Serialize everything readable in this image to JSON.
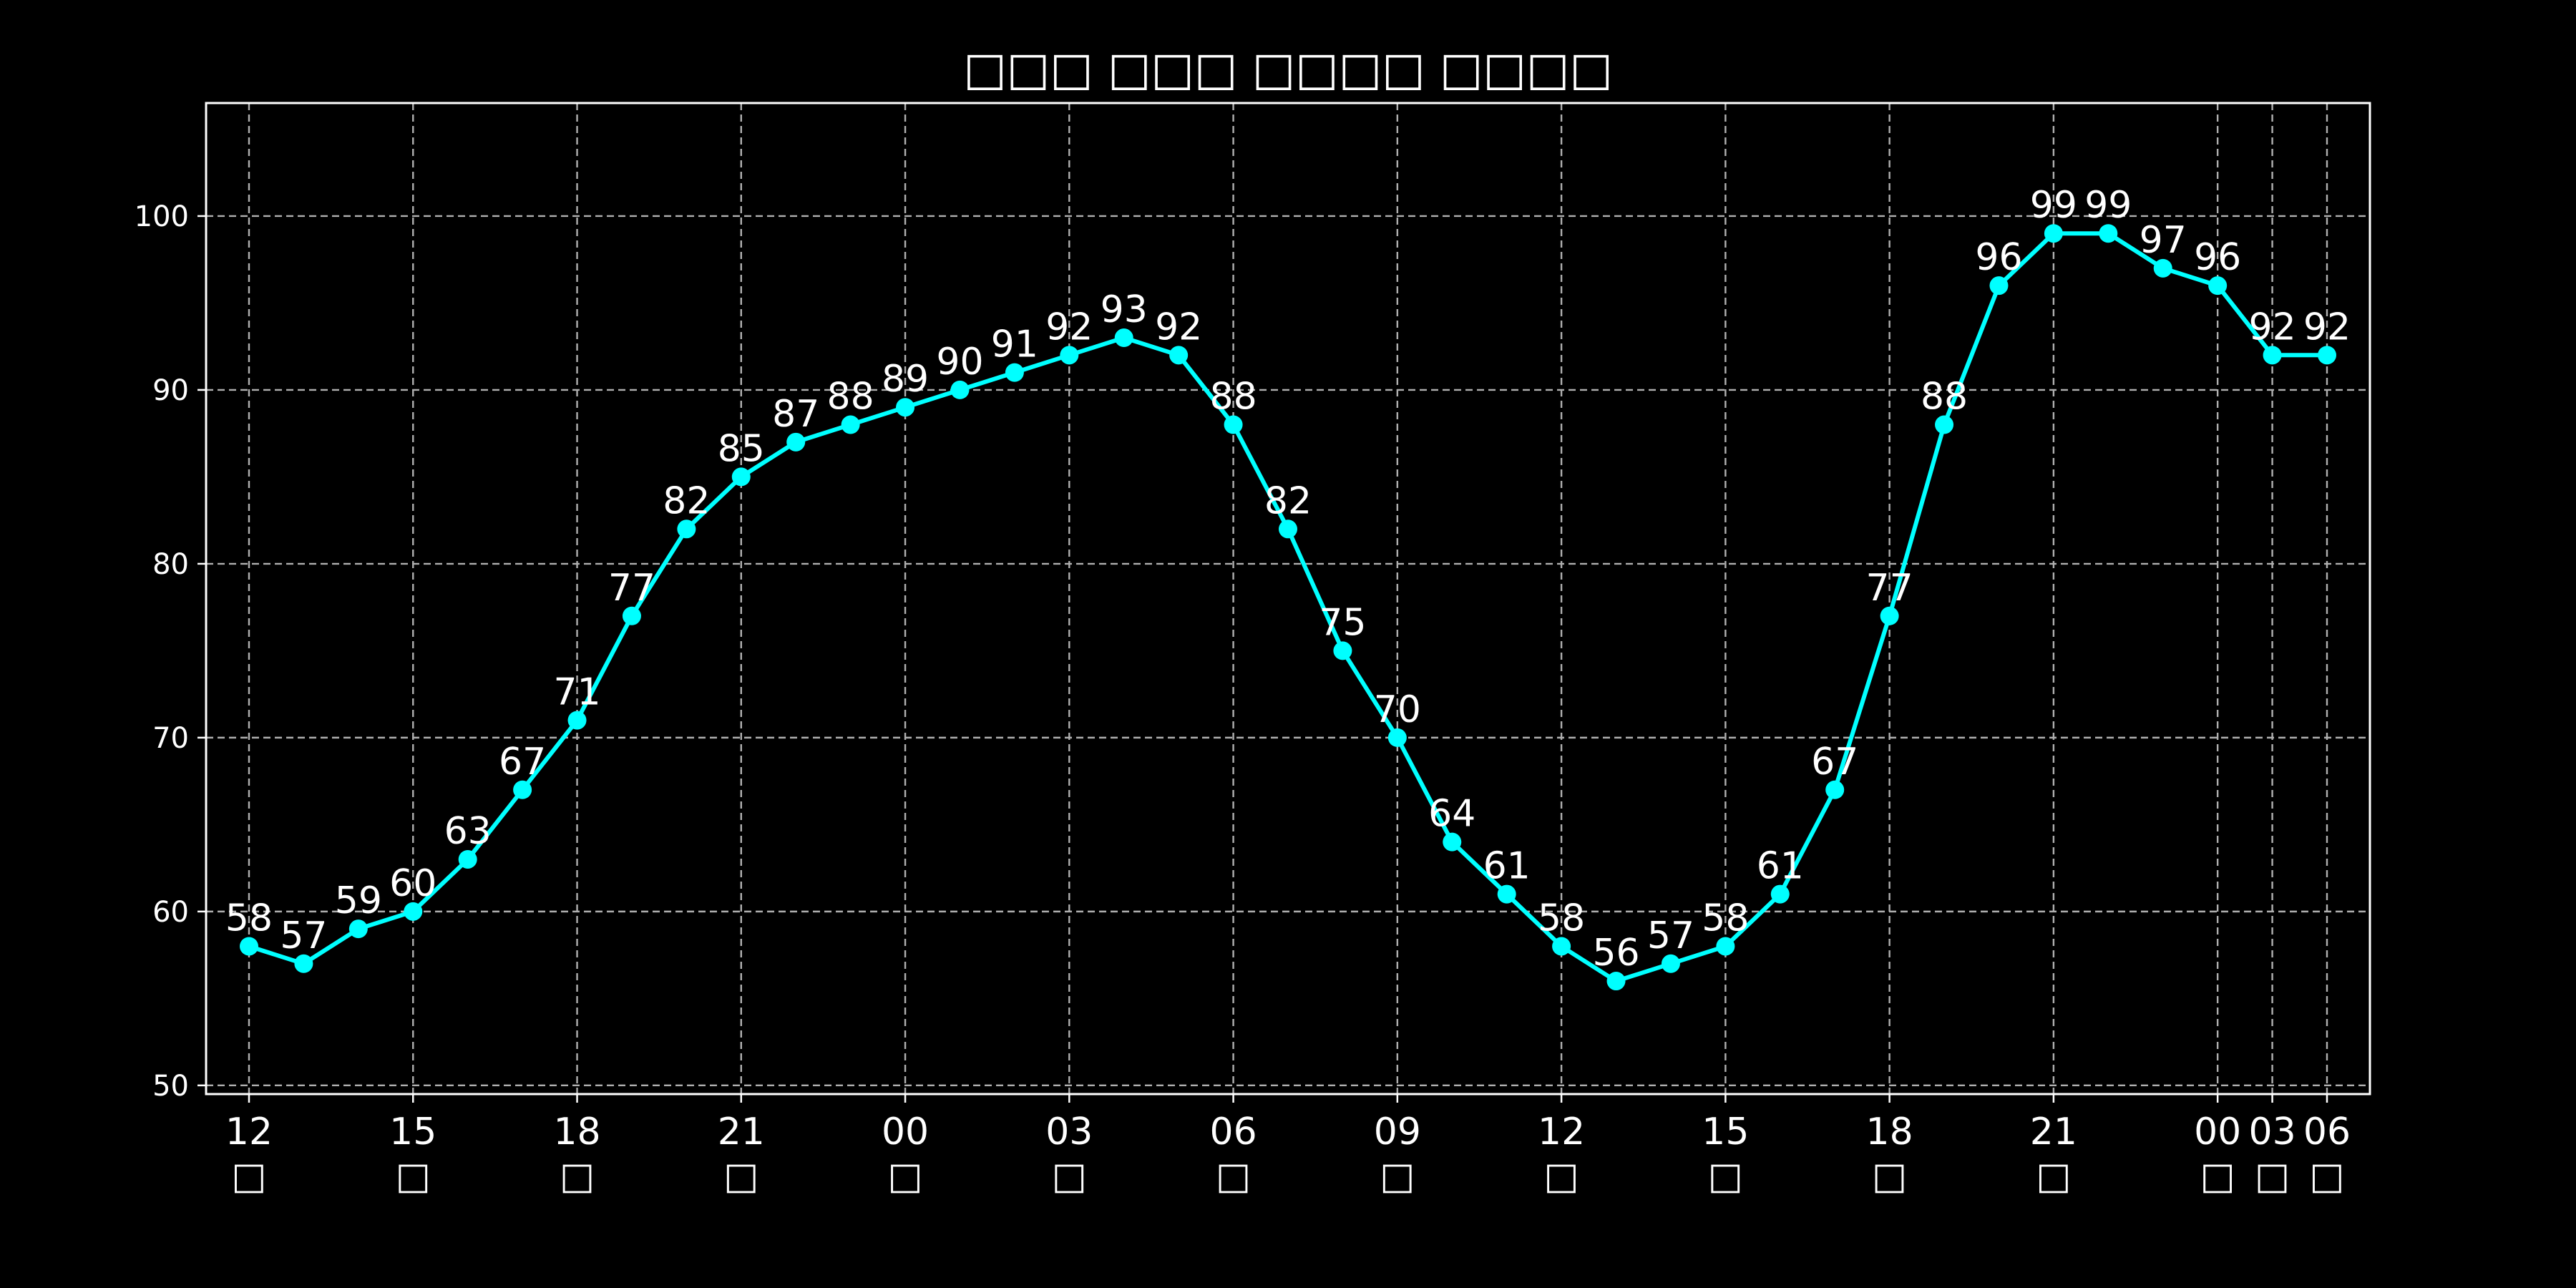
{
  "chart_data": {
    "type": "line",
    "title": "□□□ □□□ □□□□ □□□□",
    "xlabel": "",
    "ylabel": "",
    "ylim": [
      49.5,
      106.5
    ],
    "yticks": [
      50,
      60,
      70,
      80,
      90,
      100
    ],
    "grid": true,
    "line_color": "#00ffff",
    "background": "#000000",
    "x_tick_labels": [
      {
        "x": 0,
        "line1": "12",
        "line2": "□"
      },
      {
        "x": 3,
        "line1": "15",
        "line2": "□"
      },
      {
        "x": 6,
        "line1": "18",
        "line2": "□"
      },
      {
        "x": 9,
        "line1": "21",
        "line2": "□"
      },
      {
        "x": 12,
        "line1": "00",
        "line2": "□"
      },
      {
        "x": 15,
        "line1": "03",
        "line2": "□"
      },
      {
        "x": 18,
        "line1": "06",
        "line2": "□"
      },
      {
        "x": 21,
        "line1": "09",
        "line2": "□"
      },
      {
        "x": 24,
        "line1": "12",
        "line2": "□"
      },
      {
        "x": 27,
        "line1": "15",
        "line2": "□"
      },
      {
        "x": 30,
        "line1": "18",
        "line2": "□"
      },
      {
        "x": 33,
        "line1": "21",
        "line2": "□"
      },
      {
        "x": 36,
        "line1": "00",
        "line2": "□"
      },
      {
        "x": 37,
        "line1": "03",
        "line2": "□"
      },
      {
        "x": 38,
        "line1": "06",
        "line2": "□"
      }
    ],
    "series": [
      {
        "values": [
          58,
          57,
          59,
          60,
          63,
          67,
          71,
          77,
          82,
          85,
          87,
          88,
          89,
          90,
          91,
          92,
          93,
          92,
          88,
          82,
          75,
          70,
          64,
          61,
          58,
          56,
          57,
          58,
          61,
          67,
          77,
          88,
          96,
          99,
          99,
          97,
          96,
          92,
          92
        ]
      }
    ]
  }
}
